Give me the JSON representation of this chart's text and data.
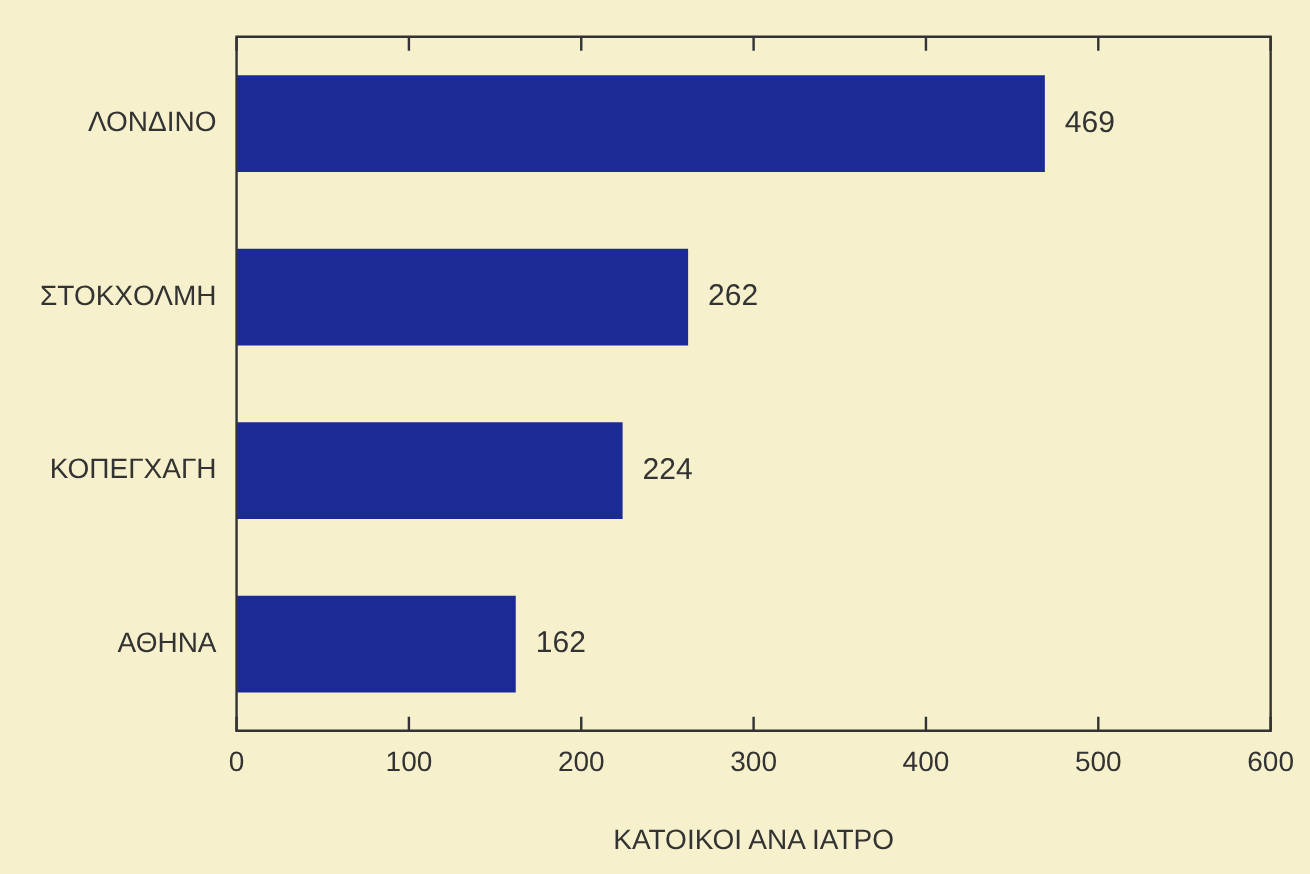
{
  "chart_data": {
    "type": "bar",
    "orientation": "horizontal",
    "xlabel": "ΚΑΤΟΙΚΟΙ ΑΝΑ ΙΑΤΡΟ",
    "categories": [
      "ΛΟΝΔΙΝΟ",
      "ΣΤΟΚΧΟΛΜΗ",
      "ΚΟΠΕΓΧΑΓΗ",
      "ΑΘΗΝΑ"
    ],
    "values": [
      469,
      262,
      224,
      162
    ],
    "color": "#1c2a96",
    "xlim": [
      0,
      600
    ],
    "xticks": [
      0,
      100,
      200,
      300,
      400,
      500,
      600
    ],
    "data_labels": true,
    "legend": false
  }
}
